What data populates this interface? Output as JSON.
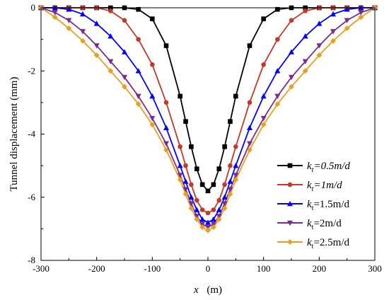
{
  "chart_data": {
    "type": "line",
    "xlabel_var": "x",
    "xlabel_unit": "(m)",
    "ylabel": "Tunnel displacement (mm)",
    "xlim": [
      -300,
      300
    ],
    "ylim": [
      -8,
      0
    ],
    "xticks": [
      -300,
      -200,
      -100,
      0,
      100,
      200,
      300
    ],
    "yticks": [
      0,
      -2,
      -4,
      -6,
      -8
    ],
    "xtick_labels": [
      "-300",
      "-200",
      "-100",
      "0",
      "100",
      "200",
      "300"
    ],
    "ytick_labels": [
      "0",
      "-2",
      "-4",
      "-6",
      "-8"
    ],
    "grid": false,
    "legend_position": "bottom-right",
    "x": [
      -300,
      -275,
      -250,
      -225,
      -200,
      -175,
      -150,
      -125,
      -100,
      -75,
      -50,
      -40,
      -30,
      -20,
      -10,
      0,
      10,
      20,
      30,
      40,
      50,
      75,
      100,
      125,
      150,
      175,
      200,
      225,
      250,
      275,
      300
    ],
    "series": [
      {
        "name": "=0.5m/d",
        "sub": "t",
        "italic": true,
        "color": "#000000",
        "marker": "square",
        "values": [
          0,
          0,
          0,
          0,
          0,
          0,
          0,
          -0.05,
          -0.35,
          -1.2,
          -2.8,
          -3.6,
          -4.4,
          -5.1,
          -5.6,
          -5.8,
          -5.6,
          -5.1,
          -4.4,
          -3.6,
          -2.8,
          -1.2,
          -0.35,
          -0.05,
          0,
          0,
          0,
          0,
          0,
          0,
          0
        ]
      },
      {
        "name": "=1m/d",
        "sub": "t",
        "italic": true,
        "color": "#c0392b",
        "marker": "circle",
        "values": [
          0,
          0,
          0,
          0,
          0,
          -0.1,
          -0.4,
          -1.0,
          -1.8,
          -3.0,
          -4.4,
          -5.0,
          -5.6,
          -6.1,
          -6.4,
          -6.5,
          -6.4,
          -6.1,
          -5.6,
          -5.0,
          -4.4,
          -3.0,
          -1.8,
          -1.0,
          -0.4,
          -0.1,
          0,
          0,
          0,
          0,
          0
        ]
      },
      {
        "name": "=1.5m/d",
        "sub": "t",
        "italic": false,
        "color": "#0000ff",
        "marker": "triangle",
        "values": [
          0,
          0,
          -0.05,
          -0.2,
          -0.5,
          -0.9,
          -1.4,
          -2.0,
          -2.8,
          -3.8,
          -5.0,
          -5.5,
          -6.0,
          -6.4,
          -6.7,
          -6.8,
          -6.7,
          -6.4,
          -6.0,
          -5.5,
          -5.0,
          -3.8,
          -2.8,
          -2.0,
          -1.4,
          -0.9,
          -0.5,
          -0.2,
          -0.05,
          0,
          0
        ]
      },
      {
        "name": "=2m/d",
        "sub": "t",
        "italic": false,
        "color": "#7b2d8e",
        "marker": "triangle-down",
        "values": [
          0,
          -0.15,
          -0.4,
          -0.75,
          -1.2,
          -1.7,
          -2.2,
          -2.8,
          -3.5,
          -4.3,
          -5.3,
          -5.75,
          -6.2,
          -6.6,
          -6.85,
          -6.95,
          -6.85,
          -6.6,
          -6.2,
          -5.75,
          -5.3,
          -4.3,
          -3.5,
          -2.8,
          -2.2,
          -1.7,
          -1.2,
          -0.75,
          -0.4,
          -0.15,
          0
        ]
      },
      {
        "name": "=2.5m/d",
        "sub": "t",
        "italic": false,
        "color": "#e6a020",
        "marker": "diamond",
        "values": [
          0,
          -0.3,
          -0.65,
          -1.05,
          -1.5,
          -2.0,
          -2.5,
          -3.05,
          -3.7,
          -4.5,
          -5.45,
          -5.9,
          -6.35,
          -6.7,
          -6.95,
          -7.05,
          -6.95,
          -6.7,
          -6.35,
          -5.9,
          -5.45,
          -4.5,
          -3.7,
          -3.05,
          -2.5,
          -2.0,
          -1.5,
          -1.05,
          -0.65,
          -0.3,
          0
        ]
      }
    ]
  }
}
